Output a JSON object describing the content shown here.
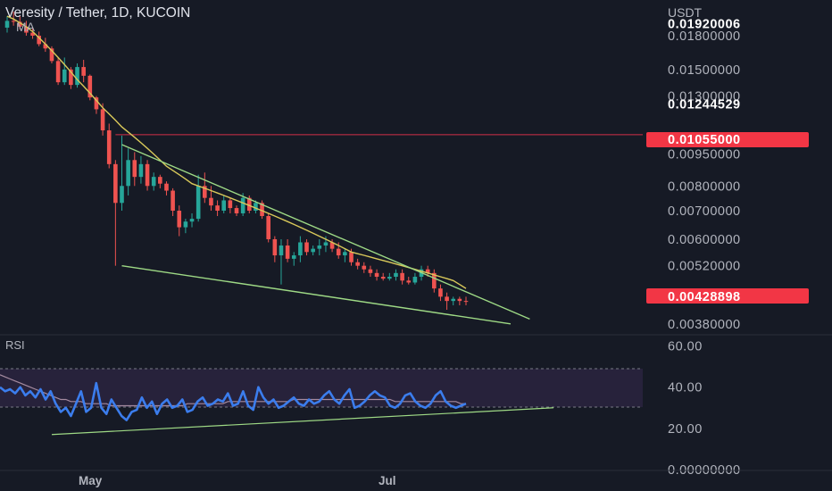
{
  "header": {
    "title": "Veresity / Tether, 1D, KUCOIN",
    "indicator_label": "MA"
  },
  "price_axis": {
    "currency": "USDT",
    "ticks": [
      "0.01920006",
      "0.01800000",
      "0.01500000",
      "0.01300000",
      "0.01244529",
      "0.00950000",
      "0.00800000",
      "0.00700000",
      "0.00600000",
      "0.00520000",
      "0.00380000"
    ],
    "hline_label": "0.01055000",
    "current_label": "0.00428898"
  },
  "rsi_pane": {
    "label": "RSI",
    "ticks": [
      "60.00",
      "40.00",
      "20.00",
      "0.00000000"
    ]
  },
  "time_axis": {
    "labels": [
      "May",
      "Jul"
    ]
  },
  "colors": {
    "background": "#161a25",
    "up": "#26a69a",
    "down": "#ef5350",
    "ma": "#d9c95a",
    "trendline": "#9ed985",
    "rsi": "#3b7ded",
    "rsi_ma": "#a58ba0",
    "hline": "#d32f47",
    "price_badge": "#f23645"
  },
  "chart_data": [
    {
      "type": "candlestick",
      "title": "Veresity / Tether, 1D, KUCOIN",
      "ylabel": "USDT",
      "yscale": "log",
      "ylim": [
        0.0036,
        0.021
      ],
      "x_ticks": [
        "May",
        "Jul"
      ],
      "series": [
        {
          "name": "MA",
          "values": [
            0.02,
            0.0197,
            0.0193,
            0.0189,
            0.0184,
            0.0178,
            0.0172,
            0.0166,
            0.016,
            0.0154,
            0.0148,
            0.0142,
            0.0137,
            0.0132,
            0.0127,
            0.0122,
            0.0118,
            0.0114,
            0.011,
            0.0107,
            0.0104,
            0.0101,
            0.0098,
            0.0095,
            0.0092,
            0.0089,
            0.0087,
            0.0085,
            0.0083,
            0.0081,
            0.008,
            0.0079,
            0.0078,
            0.0077,
            0.0076,
            0.0075,
            0.0074,
            0.0073,
            0.0072,
            0.0071,
            0.007,
            0.0069,
            0.0068,
            0.0067,
            0.0066,
            0.0065,
            0.0064,
            0.0063,
            0.0062,
            0.0061,
            0.006,
            0.0059,
            0.0058,
            0.0057,
            0.0056,
            0.00555,
            0.0055,
            0.00545,
            0.0054,
            0.00535,
            0.0053,
            0.00525,
            0.0052,
            0.00515,
            0.0051,
            0.00505,
            0.005,
            0.00495,
            0.0049,
            0.00485,
            0.0048,
            0.0047,
            0.0046
          ]
        }
      ],
      "candles": [
        {
          "o": 0.0188,
          "h": 0.02,
          "l": 0.0183,
          "c": 0.0195
        },
        {
          "o": 0.0195,
          "h": 0.0205,
          "l": 0.019,
          "c": 0.0194
        },
        {
          "o": 0.0194,
          "h": 0.02,
          "l": 0.0186,
          "c": 0.0189
        },
        {
          "o": 0.0189,
          "h": 0.0195,
          "l": 0.018,
          "c": 0.0183
        },
        {
          "o": 0.0183,
          "h": 0.0188,
          "l": 0.0177,
          "c": 0.018
        },
        {
          "o": 0.018,
          "h": 0.0184,
          "l": 0.017,
          "c": 0.0172
        },
        {
          "o": 0.0172,
          "h": 0.0178,
          "l": 0.0165,
          "c": 0.0168
        },
        {
          "o": 0.0168,
          "h": 0.017,
          "l": 0.0155,
          "c": 0.0157
        },
        {
          "o": 0.0157,
          "h": 0.016,
          "l": 0.0138,
          "c": 0.014
        },
        {
          "o": 0.014,
          "h": 0.016,
          "l": 0.0138,
          "c": 0.015
        },
        {
          "o": 0.015,
          "h": 0.0152,
          "l": 0.0135,
          "c": 0.0138
        },
        {
          "o": 0.0138,
          "h": 0.0155,
          "l": 0.0136,
          "c": 0.0152
        },
        {
          "o": 0.0152,
          "h": 0.0158,
          "l": 0.014,
          "c": 0.0145
        },
        {
          "o": 0.0145,
          "h": 0.0146,
          "l": 0.0127,
          "c": 0.0129
        },
        {
          "o": 0.0129,
          "h": 0.013,
          "l": 0.0118,
          "c": 0.0121
        },
        {
          "o": 0.0121,
          "h": 0.0125,
          "l": 0.0105,
          "c": 0.0108
        },
        {
          "o": 0.0108,
          "h": 0.0112,
          "l": 0.0088,
          "c": 0.009
        },
        {
          "o": 0.009,
          "h": 0.0092,
          "l": 0.0052,
          "c": 0.0073
        },
        {
          "o": 0.0073,
          "h": 0.0105,
          "l": 0.007,
          "c": 0.008
        },
        {
          "o": 0.008,
          "h": 0.0098,
          "l": 0.0076,
          "c": 0.0092
        },
        {
          "o": 0.0092,
          "h": 0.0096,
          "l": 0.008,
          "c": 0.0084
        },
        {
          "o": 0.0084,
          "h": 0.0094,
          "l": 0.0081,
          "c": 0.009
        },
        {
          "o": 0.009,
          "h": 0.0092,
          "l": 0.0078,
          "c": 0.008
        },
        {
          "o": 0.008,
          "h": 0.0086,
          "l": 0.0078,
          "c": 0.0084
        },
        {
          "o": 0.0084,
          "h": 0.0085,
          "l": 0.0079,
          "c": 0.0081
        },
        {
          "o": 0.0081,
          "h": 0.0082,
          "l": 0.0076,
          "c": 0.0078
        },
        {
          "o": 0.0078,
          "h": 0.0079,
          "l": 0.0068,
          "c": 0.007
        },
        {
          "o": 0.007,
          "h": 0.0072,
          "l": 0.0061,
          "c": 0.0064
        },
        {
          "o": 0.0064,
          "h": 0.0067,
          "l": 0.0062,
          "c": 0.0066
        },
        {
          "o": 0.0066,
          "h": 0.0069,
          "l": 0.0064,
          "c": 0.0067
        },
        {
          "o": 0.0067,
          "h": 0.0085,
          "l": 0.0066,
          "c": 0.008
        },
        {
          "o": 0.008,
          "h": 0.0086,
          "l": 0.0073,
          "c": 0.0075
        },
        {
          "o": 0.0075,
          "h": 0.008,
          "l": 0.007,
          "c": 0.0072
        },
        {
          "o": 0.0072,
          "h": 0.0074,
          "l": 0.0068,
          "c": 0.007
        },
        {
          "o": 0.007,
          "h": 0.0076,
          "l": 0.0069,
          "c": 0.0074
        },
        {
          "o": 0.0074,
          "h": 0.0075,
          "l": 0.0069,
          "c": 0.0071
        },
        {
          "o": 0.0071,
          "h": 0.0072,
          "l": 0.0068,
          "c": 0.0069
        },
        {
          "o": 0.0069,
          "h": 0.0077,
          "l": 0.0068,
          "c": 0.0075
        },
        {
          "o": 0.0075,
          "h": 0.0076,
          "l": 0.0069,
          "c": 0.007
        },
        {
          "o": 0.007,
          "h": 0.0074,
          "l": 0.0069,
          "c": 0.0073
        },
        {
          "o": 0.0073,
          "h": 0.0074,
          "l": 0.0067,
          "c": 0.0068
        },
        {
          "o": 0.0068,
          "h": 0.0069,
          "l": 0.0059,
          "c": 0.006
        },
        {
          "o": 0.006,
          "h": 0.0061,
          "l": 0.0053,
          "c": 0.0055
        },
        {
          "o": 0.0055,
          "h": 0.006,
          "l": 0.0047,
          "c": 0.0058
        },
        {
          "o": 0.0058,
          "h": 0.006,
          "l": 0.0053,
          "c": 0.0054
        },
        {
          "o": 0.0054,
          "h": 0.0056,
          "l": 0.0052,
          "c": 0.0055
        },
        {
          "o": 0.0055,
          "h": 0.0061,
          "l": 0.0053,
          "c": 0.0059
        },
        {
          "o": 0.0059,
          "h": 0.006,
          "l": 0.0055,
          "c": 0.0056
        },
        {
          "o": 0.0056,
          "h": 0.0058,
          "l": 0.0055,
          "c": 0.0057
        },
        {
          "o": 0.0057,
          "h": 0.006,
          "l": 0.0055,
          "c": 0.0058
        },
        {
          "o": 0.0058,
          "h": 0.0061,
          "l": 0.0056,
          "c": 0.0059
        },
        {
          "o": 0.0059,
          "h": 0.006,
          "l": 0.0056,
          "c": 0.0057
        },
        {
          "o": 0.0057,
          "h": 0.0059,
          "l": 0.0054,
          "c": 0.0055
        },
        {
          "o": 0.0055,
          "h": 0.0057,
          "l": 0.0053,
          "c": 0.0056
        },
        {
          "o": 0.0056,
          "h": 0.0057,
          "l": 0.0052,
          "c": 0.0053
        },
        {
          "o": 0.0053,
          "h": 0.0054,
          "l": 0.0051,
          "c": 0.0052
        },
        {
          "o": 0.0052,
          "h": 0.0053,
          "l": 0.005,
          "c": 0.0051
        },
        {
          "o": 0.0051,
          "h": 0.0052,
          "l": 0.0049,
          "c": 0.005
        },
        {
          "o": 0.005,
          "h": 0.0051,
          "l": 0.0048,
          "c": 0.0049
        },
        {
          "o": 0.0049,
          "h": 0.005,
          "l": 0.0048,
          "c": 0.00485
        },
        {
          "o": 0.00485,
          "h": 0.005,
          "l": 0.0048,
          "c": 0.0049
        },
        {
          "o": 0.0049,
          "h": 0.0051,
          "l": 0.0048,
          "c": 0.005
        },
        {
          "o": 0.005,
          "h": 0.0051,
          "l": 0.0047,
          "c": 0.0048
        },
        {
          "o": 0.0048,
          "h": 0.0049,
          "l": 0.0047,
          "c": 0.00475
        },
        {
          "o": 0.00475,
          "h": 0.005,
          "l": 0.0047,
          "c": 0.0049
        },
        {
          "o": 0.0049,
          "h": 0.0052,
          "l": 0.0048,
          "c": 0.0051
        },
        {
          "o": 0.0051,
          "h": 0.0052,
          "l": 0.0049,
          "c": 0.005
        },
        {
          "o": 0.005,
          "h": 0.0051,
          "l": 0.0045,
          "c": 0.0046
        },
        {
          "o": 0.0046,
          "h": 0.0047,
          "l": 0.0043,
          "c": 0.0044
        },
        {
          "o": 0.0044,
          "h": 0.0045,
          "l": 0.0041,
          "c": 0.0043
        },
        {
          "o": 0.0043,
          "h": 0.0044,
          "l": 0.0042,
          "c": 0.00435
        },
        {
          "o": 0.00435,
          "h": 0.0044,
          "l": 0.0042,
          "c": 0.0043
        },
        {
          "o": 0.0043,
          "h": 0.0044,
          "l": 0.0042,
          "c": 0.00429
        }
      ],
      "hline": 0.01055,
      "trendlines": [
        {
          "from": {
            "i": 18,
            "v": 0.01
          },
          "to": {
            "i": 82,
            "v": 0.0039
          }
        },
        {
          "from": {
            "i": 18,
            "v": 0.0052
          },
          "to": {
            "i": 79,
            "v": 0.0038
          }
        }
      ],
      "annotations": [
        "0.01055000",
        "0.00428898"
      ]
    },
    {
      "type": "line",
      "title": "RSI",
      "ylim": [
        0,
        65
      ],
      "levels": [
        50,
        30
      ],
      "series": [
        {
          "name": "RSI",
          "values": [
            40,
            38,
            39,
            37,
            40,
            36,
            38,
            35,
            39,
            34,
            38,
            32,
            28,
            30,
            26,
            32,
            38,
            28,
            30,
            42,
            30,
            27,
            34,
            30,
            26,
            24,
            28,
            29,
            35,
            30,
            33,
            27,
            32,
            34,
            30,
            31,
            34,
            28,
            29,
            33,
            35,
            31,
            32,
            34,
            33,
            37,
            31,
            32,
            38,
            31,
            29,
            40,
            35,
            32,
            34,
            30,
            31,
            33,
            35,
            32,
            31,
            34,
            32,
            33,
            36,
            38,
            34,
            32,
            36,
            39,
            30,
            31,
            33,
            36,
            38,
            36,
            35,
            31,
            30,
            32,
            36,
            37,
            33,
            31,
            30,
            32,
            36,
            38,
            33,
            31,
            30,
            31,
            32
          ]
        },
        {
          "name": "RSI MA",
          "values": [
            46,
            45,
            44,
            43,
            42,
            41,
            40,
            39,
            38,
            37,
            36,
            35,
            34,
            34,
            33,
            33,
            33,
            32,
            32,
            32,
            32,
            32,
            31,
            31,
            31,
            31,
            31,
            31,
            31,
            31,
            31,
            31,
            31,
            31,
            31,
            31,
            31,
            32,
            32,
            32,
            32,
            32,
            32,
            32,
            32,
            33,
            33,
            33,
            33,
            33,
            33,
            33,
            33,
            33,
            33,
            33,
            33,
            33,
            34,
            34,
            34,
            34,
            34,
            34,
            34,
            34,
            34,
            34,
            34,
            34,
            34,
            34,
            34,
            34,
            34,
            34,
            34,
            34,
            33,
            33,
            33,
            33,
            33,
            33,
            33,
            33,
            33,
            33,
            33,
            33,
            33,
            32,
            32
          ]
        }
      ],
      "trendlines": [
        {
          "from": {
            "i": 0,
            "v": 17
          },
          "to": {
            "i": 92,
            "v": 30
          }
        }
      ]
    }
  ]
}
